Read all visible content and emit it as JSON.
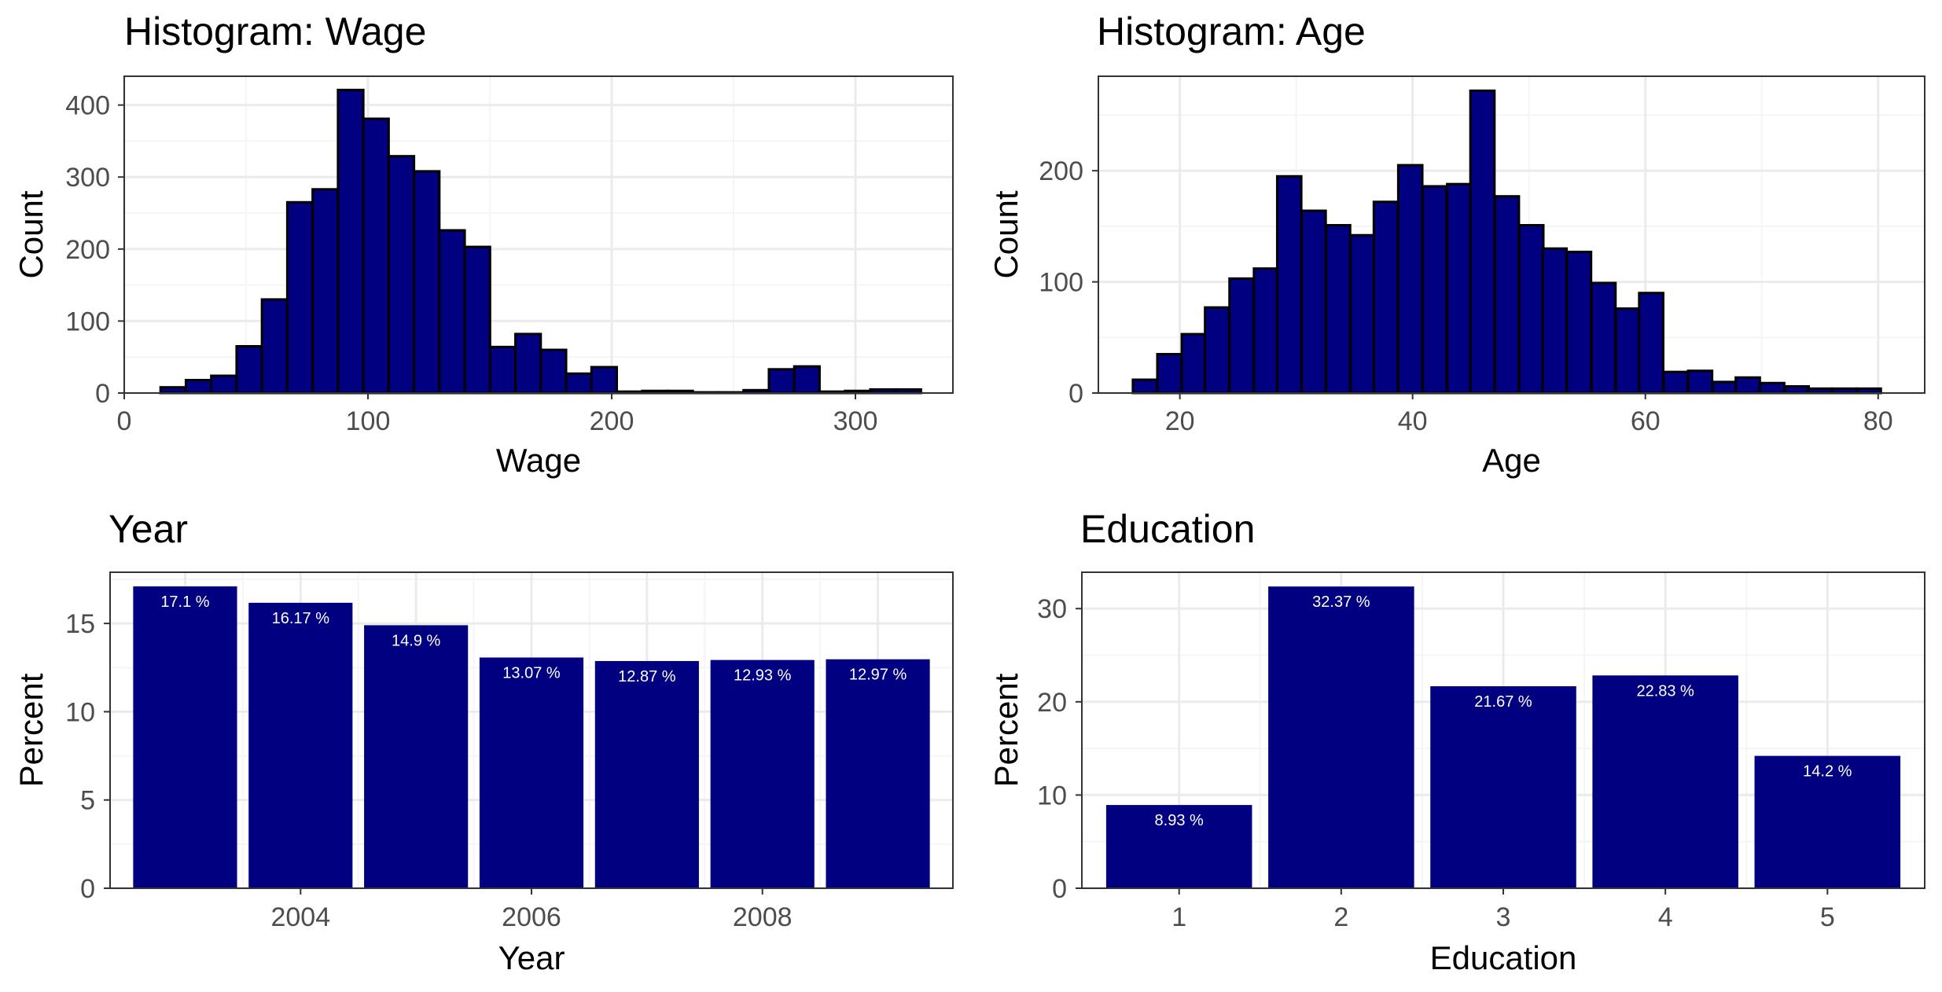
{
  "colors": {
    "bar_fill": "#000080",
    "bar_outline": "#000000",
    "grid_major": "#ebebeb",
    "grid_minor": "#f5f5f5",
    "panel_border": "#333333",
    "tick_label": "#4d4d4d",
    "data_label": "#ffffff",
    "background": "#ffffff"
  },
  "chart_data": [
    {
      "type": "bar",
      "histogram": true,
      "title": "Histogram: Wage",
      "xlabel": "Wage",
      "ylabel": "Count",
      "xlim": [
        0,
        340
      ],
      "ylim": [
        0,
        440
      ],
      "x_ticks": [
        0,
        100,
        200,
        300
      ],
      "y_ticks": [
        0,
        100,
        200,
        300,
        400
      ],
      "grid": true,
      "bin_width": 10.4,
      "x": [
        20.1,
        30.5,
        40.9,
        51.3,
        61.7,
        72.1,
        82.5,
        92.9,
        103.3,
        113.7,
        124.1,
        134.5,
        144.9,
        155.3,
        165.7,
        176.1,
        186.5,
        196.9,
        207.3,
        217.7,
        228.1,
        238.5,
        248.9,
        259.3,
        269.7,
        280.1,
        290.5,
        300.9,
        311.3,
        321.7
      ],
      "values": [
        8,
        18,
        24,
        65,
        130,
        265,
        283,
        421,
        381,
        329,
        308,
        226,
        203,
        64,
        82,
        60,
        27,
        36,
        2,
        3,
        3,
        1,
        1,
        4,
        33,
        37,
        2,
        3,
        5,
        5
      ]
    },
    {
      "type": "bar",
      "histogram": true,
      "title": "Histogram: Age",
      "xlabel": "Age",
      "ylabel": "Count",
      "xlim": [
        13,
        84
      ],
      "ylim": [
        0,
        285
      ],
      "x_ticks": [
        20,
        40,
        60,
        80
      ],
      "y_ticks": [
        0,
        100,
        200
      ],
      "grid": true,
      "bin_width": 2.07,
      "x": [
        17.0,
        19.1,
        21.2,
        23.2,
        25.3,
        27.4,
        29.4,
        31.5,
        33.6,
        35.7,
        37.7,
        39.8,
        41.9,
        44.0,
        46.0,
        48.1,
        50.2,
        52.2,
        54.3,
        56.4,
        58.5,
        60.5,
        62.6,
        64.7,
        66.8,
        68.8,
        70.9,
        73.0,
        75.0,
        77.1,
        79.2
      ],
      "values": [
        12,
        35,
        53,
        77,
        103,
        112,
        195,
        164,
        151,
        142,
        172,
        205,
        186,
        188,
        272,
        177,
        151,
        130,
        127,
        99,
        76,
        90,
        19,
        20,
        10,
        14,
        9,
        6,
        4,
        4,
        4
      ]
    },
    {
      "type": "bar",
      "title": "Year",
      "xlabel": "Year",
      "ylabel": "Percent",
      "x_ticks": [
        2004,
        2006,
        2008
      ],
      "y_ticks": [
        0,
        5,
        10,
        15
      ],
      "ylim": [
        0,
        17.9
      ],
      "xlim": [
        2002.35,
        2009.65
      ],
      "grid": true,
      "x": [
        2003,
        2004,
        2005,
        2006,
        2007,
        2008,
        2009
      ],
      "values": [
        17.1,
        16.17,
        14.9,
        13.07,
        12.87,
        12.93,
        12.97
      ],
      "labels": [
        "17.1 %",
        "16.17 %",
        "14.9 %",
        "13.07 %",
        "12.87 %",
        "12.93 %",
        "12.97 %"
      ]
    },
    {
      "type": "bar",
      "title": "Education",
      "xlabel": "Education",
      "ylabel": "Percent",
      "x_ticks": [
        1,
        2,
        3,
        4,
        5
      ],
      "y_ticks": [
        0,
        10,
        20,
        30
      ],
      "ylim": [
        0,
        33.9
      ],
      "xlim": [
        0.4,
        5.6
      ],
      "grid": true,
      "x": [
        1,
        2,
        3,
        4,
        5
      ],
      "values": [
        8.93,
        32.37,
        21.67,
        22.83,
        14.2
      ],
      "labels": [
        "8.93 %",
        "32.37 %",
        "21.67 %",
        "22.83 %",
        "14.2 %"
      ]
    }
  ]
}
